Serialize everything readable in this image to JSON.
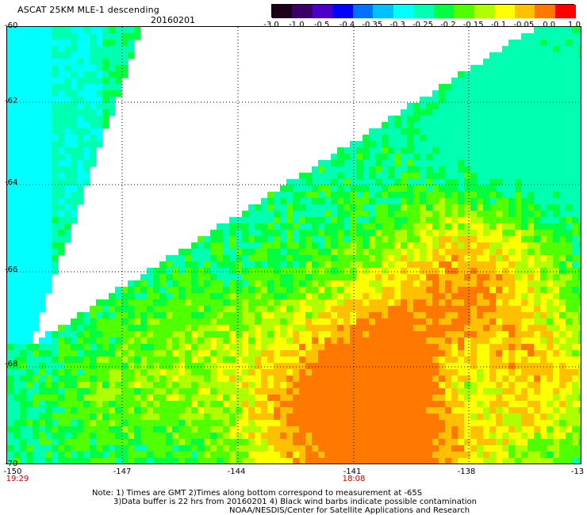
{
  "header": {
    "title": "ASCAT 25KM MLE-1 descending",
    "date": "20160201"
  },
  "legend": {
    "labels": [
      "-3.0",
      "-1.0",
      "-0.5",
      "-0.4",
      "-0.35",
      "-0.3",
      "-0.25",
      "-0.2",
      "-0.15",
      "-0.1",
      "-0.05",
      "0.0",
      "1.0"
    ],
    "colors": [
      "#1b0018",
      "#3b0066",
      "#4b00c9",
      "#0000ff",
      "#0070ff",
      "#00c0ff",
      "#00ffff",
      "#00ffb0",
      "#00ff40",
      "#50ff00",
      "#b0ff00",
      "#ffff00",
      "#ffc000",
      "#ff7800",
      "#ff0000"
    ]
  },
  "axes": {
    "lat_labels": [
      "-60",
      "-62",
      "-64",
      "-66",
      "-68",
      "-70"
    ],
    "lon_labels": [
      "-150",
      "-147",
      "-144",
      "-141",
      "-138",
      "-13"
    ],
    "time_labels": [
      "19:29",
      "18:08"
    ]
  },
  "notes": {
    "line1": "Note: 1) Times are GMT 2)Times along bottom correspond to measurement at -65S",
    "line2": "3)Data buffer is 22 hrs from 20160201 4) Black wind barbs indicate possible contamination",
    "line3": "NOAA/NESDIS/Center for Satellite Applications and Research"
  }
}
